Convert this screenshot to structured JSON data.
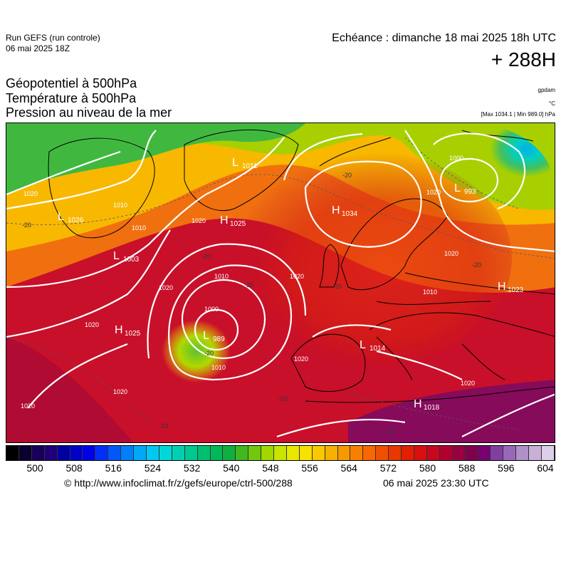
{
  "header": {
    "run_line1": "Run GEFS (run controle)",
    "run_line2": "06 mai 2025 18Z",
    "echeance": "Echéance : dimanche 18 mai 2025 18h UTC",
    "hour": "+ 288H"
  },
  "params": {
    "line1": "Géopotentiel à 500hPa",
    "line2": "Température à 500hPa",
    "line3": "Pression au niveau de la mer"
  },
  "units": {
    "u1": "gpdam",
    "u2": "°C",
    "u3": "[Max 1034.1 | Min 989.0] hPa"
  },
  "map": {
    "centers": {
      "h1034": {
        "letter": "H",
        "value": "1034"
      },
      "h1025_north": {
        "letter": "H",
        "value": "1025"
      },
      "h1025_atl": {
        "letter": "H",
        "value": "1025"
      },
      "h1023": {
        "letter": "H",
        "value": "1023"
      },
      "h1018": {
        "letter": "H",
        "value": "1018"
      },
      "l1014": {
        "letter": "L",
        "value": "1014"
      },
      "l1011": {
        "letter": "L",
        "value": "1011"
      },
      "l1026": {
        "letter": "L",
        "value": "1026"
      },
      "l1003": {
        "letter": "L",
        "value": "1003"
      },
      "l993": {
        "letter": "L",
        "value": "993"
      },
      "l989": {
        "letter": "L",
        "value": "989"
      }
    },
    "isobar_labels": [
      "1020",
      "1020",
      "1020",
      "1020",
      "1010",
      "1010",
      "1000",
      "1010",
      "1020",
      "1010",
      "1020",
      "1020",
      "1000",
      "1020",
      "1010",
      "1020",
      "1020",
      "1020"
    ],
    "temp_labels": [
      "-20",
      "-20",
      "-20",
      "-20",
      "-20",
      "-20",
      "-10",
      "-10",
      "-10",
      "-20"
    ]
  },
  "colorbar": {
    "colors": [
      "#000000",
      "#0c0030",
      "#180058",
      "#200078",
      "#0000a0",
      "#0000c8",
      "#0000e8",
      "#0030f8",
      "#0058f8",
      "#0080f8",
      "#00a8f8",
      "#00c8f0",
      "#00d8d8",
      "#00d0b0",
      "#00c890",
      "#00c070",
      "#00b858",
      "#10b040",
      "#40b820",
      "#70c810",
      "#a0d800",
      "#c8e400",
      "#e8e800",
      "#f8e000",
      "#f8c800",
      "#f8b000",
      "#f89800",
      "#f88000",
      "#f86800",
      "#f05000",
      "#e83800",
      "#e02000",
      "#d81010",
      "#c80820",
      "#b00030",
      "#980040",
      "#800050",
      "#780070",
      "#8040a0",
      "#9868b8",
      "#b090c8",
      "#c8b0d8",
      "#dcd0e8"
    ],
    "ticks": [
      "500",
      "508",
      "516",
      "524",
      "532",
      "540",
      "548",
      "556",
      "564",
      "572",
      "580",
      "588",
      "596",
      "604"
    ]
  },
  "footer": {
    "url": "© http://www.infoclimat.fr/z/gefs/europe/ctrl-500/288",
    "timestamp": "06 mai 2025 23:30 UTC"
  }
}
